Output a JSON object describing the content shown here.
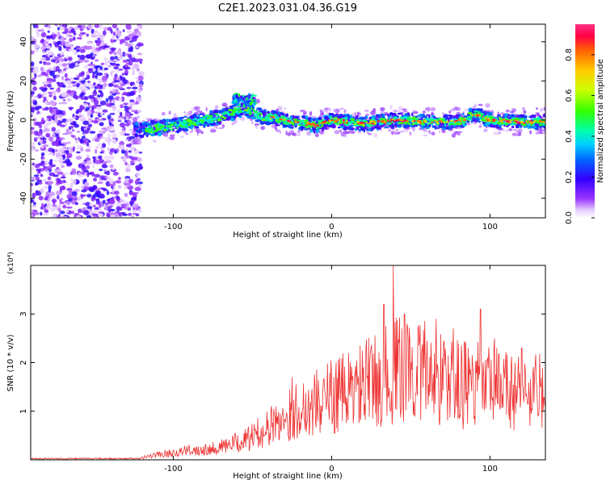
{
  "title": "C2E1.2023.031.04.36.G19",
  "chart_data": [
    {
      "type": "heatmap",
      "xlabel": "Height of straight line (km)",
      "ylabel": "Frequency (Hz)",
      "xlim": [
        -190,
        135
      ],
      "ylim": [
        -50,
        49
      ],
      "xticks": [
        -100,
        0,
        100
      ],
      "yticks": [
        -40,
        -20,
        0,
        20,
        40
      ],
      "colorbar": {
        "label": "Normalized spectral amplitude",
        "range": [
          0,
          0.95
        ],
        "ticks": [
          "0.0",
          "0.2",
          "0.4",
          "0.6",
          "0.8"
        ]
      },
      "ridge": {
        "description": "dominant frequency trace",
        "points": [
          [
            -120,
            -5
          ],
          [
            -100,
            -3
          ],
          [
            -80,
            0
          ],
          [
            -65,
            3
          ],
          [
            -55,
            6
          ],
          [
            -45,
            2
          ],
          [
            -30,
            0
          ],
          [
            -15,
            -2
          ],
          [
            -10,
            -3
          ],
          [
            0,
            0
          ],
          [
            20,
            -2
          ],
          [
            40,
            0
          ],
          [
            60,
            -1
          ],
          [
            80,
            -1
          ],
          [
            90,
            3
          ],
          [
            100,
            0
          ],
          [
            120,
            -1
          ],
          [
            135,
            -1
          ]
        ]
      },
      "noise_region_x": [
        -190,
        -120
      ],
      "grid": false
    },
    {
      "type": "line",
      "xlabel": "Height of straight line (km)",
      "ylabel": "SNR (10 * v/v)",
      "yscale_note": "(x10⁴)",
      "xlim": [
        -190,
        135
      ],
      "ylim": [
        0,
        4
      ],
      "xticks": [
        -100,
        0,
        100
      ],
      "yticks": [
        1,
        2,
        3
      ],
      "color": "#ee3333",
      "envelope": [
        [
          -190,
          0.02
        ],
        [
          -120,
          0.05
        ],
        [
          -110,
          0.12
        ],
        [
          -90,
          0.22
        ],
        [
          -70,
          0.3
        ],
        [
          -55,
          0.45
        ],
        [
          -40,
          0.75
        ],
        [
          -30,
          1.0
        ],
        [
          -20,
          1.2
        ],
        [
          -10,
          1.35
        ],
        [
          0,
          1.5
        ],
        [
          10,
          1.6
        ],
        [
          20,
          1.75
        ],
        [
          30,
          1.9
        ],
        [
          40,
          2.1
        ],
        [
          50,
          2.15
        ],
        [
          60,
          2.05
        ],
        [
          70,
          1.9
        ],
        [
          80,
          1.8
        ],
        [
          90,
          1.75
        ],
        [
          100,
          1.7
        ],
        [
          110,
          1.65
        ],
        [
          120,
          1.6
        ],
        [
          135,
          1.6
        ]
      ],
      "peaks": [
        [
          -25,
          1.7
        ],
        [
          5,
          2.1
        ],
        [
          25,
          2.3
        ],
        [
          33,
          3.2
        ],
        [
          39,
          4.0
        ],
        [
          46,
          3.0
        ],
        [
          66,
          2.9
        ],
        [
          77,
          2.7
        ],
        [
          94,
          3.1
        ],
        [
          103,
          2.5
        ],
        [
          120,
          2.3
        ]
      ],
      "grid": false
    }
  ]
}
